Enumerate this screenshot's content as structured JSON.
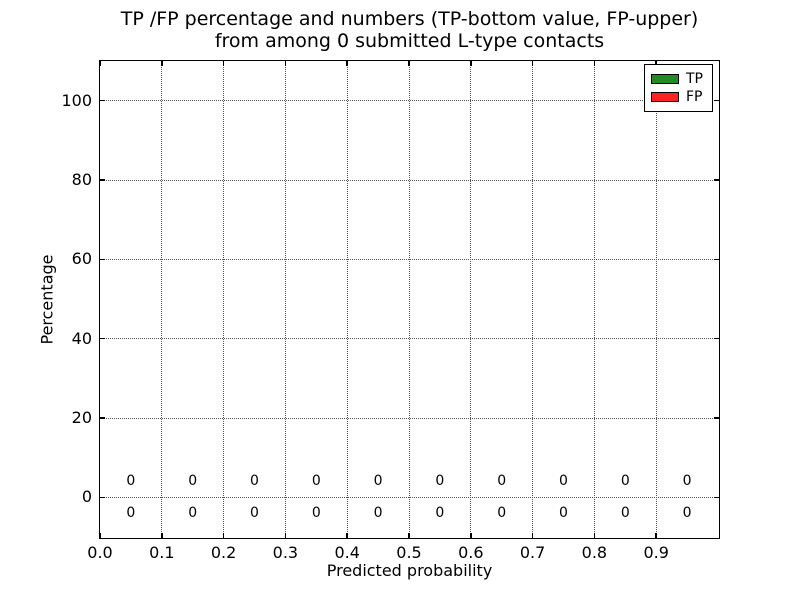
{
  "figure_title": {
    "line1": "TP /FP percentage and numbers (TP-bottom value, FP-upper)",
    "line2": "from among 0 submitted L-type contacts"
  },
  "chart_data": {
    "type": "bar",
    "title": "TP /FP percentage and numbers (TP-bottom value, FP-upper)\nfrom among 0 submitted L-type contacts",
    "xlabel": "Predicted probability",
    "ylabel": "Percentage",
    "xlim": [
      0.0,
      1.0
    ],
    "ylim": [
      -10,
      110
    ],
    "xticks": [
      0.0,
      0.1,
      0.2,
      0.3,
      0.4,
      0.5,
      0.6,
      0.7,
      0.8,
      0.9
    ],
    "xtick_labels": [
      "0.0",
      "0.1",
      "0.2",
      "0.3",
      "0.4",
      "0.5",
      "0.6",
      "0.7",
      "0.8",
      "0.9"
    ],
    "yticks": [
      0,
      20,
      40,
      60,
      80,
      100
    ],
    "ytick_labels": [
      "0",
      "20",
      "40",
      "60",
      "80",
      "100"
    ],
    "grid": true,
    "grid_linestyle": "dotted",
    "legend_position": "upper right",
    "bin_centers": [
      0.05,
      0.15,
      0.25,
      0.35,
      0.45,
      0.55,
      0.65,
      0.75,
      0.85,
      0.95
    ],
    "series": [
      {
        "name": "TP",
        "color": "#228B22",
        "annotation_row": "bottom",
        "annotation_y": -4,
        "values": [
          0,
          0,
          0,
          0,
          0,
          0,
          0,
          0,
          0,
          0
        ]
      },
      {
        "name": "FP",
        "color": "#FF2222",
        "annotation_row": "upper",
        "annotation_y": 4,
        "values": [
          0,
          0,
          0,
          0,
          0,
          0,
          0,
          0,
          0,
          0
        ]
      }
    ]
  }
}
